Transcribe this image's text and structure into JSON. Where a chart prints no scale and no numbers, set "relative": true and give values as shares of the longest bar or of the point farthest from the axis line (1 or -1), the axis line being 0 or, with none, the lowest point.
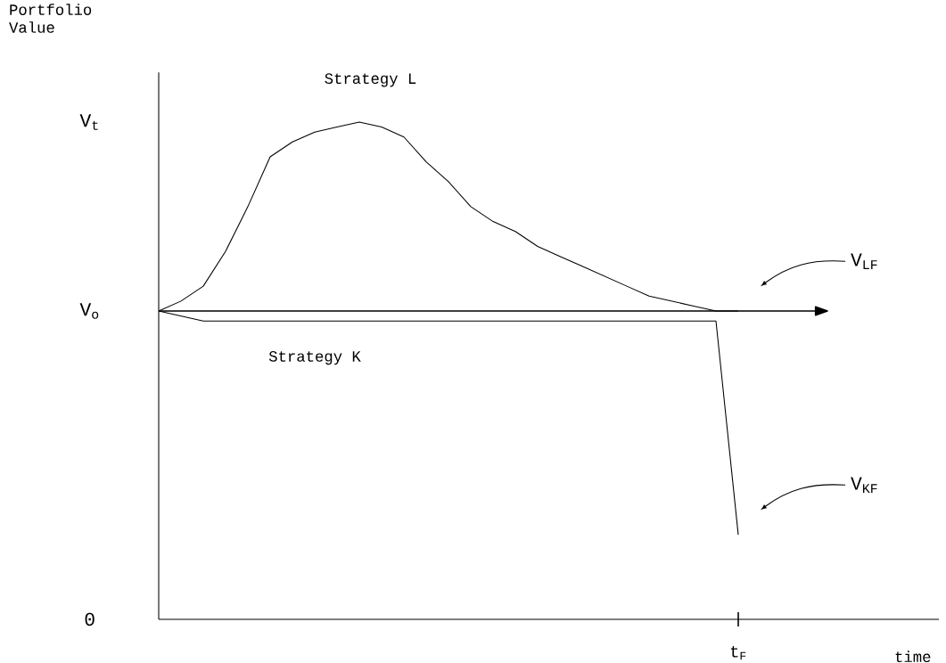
{
  "chart_data": {
    "type": "line",
    "relative": true,
    "xlabel": "time",
    "categories": [
      null,
      null,
      null,
      null,
      null,
      null,
      null,
      null,
      null,
      null,
      null,
      null,
      null,
      null,
      null,
      null,
      null,
      null,
      null,
      null,
      null,
      null,
      null,
      null,
      null,
      null,
      null,
      null,
      null,
      null,
      null,
      null,
      null,
      null,
      null,
      null
    ],
    "series": [
      {
        "name": "Strategy L",
        "color": "#000000",
        "values": [
          0.62,
          0.64,
          0.67,
          0.74,
          0.83,
          0.93,
          0.96,
          0.98,
          0.99,
          1.0,
          0.99,
          0.97,
          0.92,
          0.88,
          0.83,
          0.8,
          0.78,
          0.75,
          0.73,
          0.71,
          0.69,
          0.67,
          0.65,
          0.64,
          0.63,
          0.62,
          0.62,
          null,
          null,
          null,
          null,
          null,
          null,
          null,
          null,
          null
        ]
      },
      {
        "name": "Strategy K",
        "color": "#000000",
        "values": [
          0.62,
          0.61,
          0.6,
          0.6,
          0.6,
          0.6,
          0.6,
          0.6,
          0.6,
          0.6,
          0.6,
          0.6,
          0.6,
          0.6,
          0.6,
          0.6,
          0.6,
          0.6,
          0.6,
          0.6,
          0.6,
          0.6,
          0.6,
          0.6,
          0.6,
          0.6,
          0.17,
          null,
          null,
          null,
          null,
          null,
          null,
          null,
          null,
          null
        ]
      }
    ],
    "ref_lines": [
      {
        "axis": "y",
        "value": 0.62,
        "color": "#000000"
      }
    ],
    "annotations": [
      "Portfolio Value",
      "V$_{t}$",
      "V$_{o}$",
      "0",
      "V$_{LF}$",
      "V$_{KF}$",
      "t$_{F}$"
    ],
    "legend": false,
    "marker": "none",
    "line_style": "solid"
  }
}
